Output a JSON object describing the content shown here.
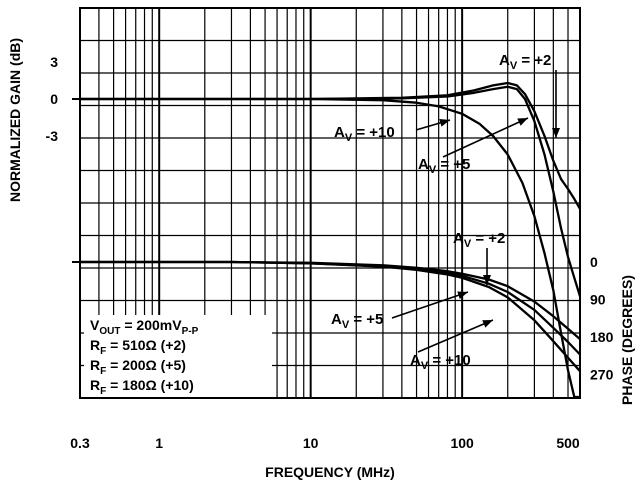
{
  "chart_data": {
    "type": "line",
    "xlabel": "FREQUENCY (MHz)",
    "ylabel_left": "NORMALIZED GAIN (dB)",
    "ylabel_right": "PHASE (DEGREES)",
    "x_scale": "log",
    "xlim": [
      0.3,
      600
    ],
    "x_ticks": [
      {
        "value": 0.3,
        "label": "0.3"
      },
      {
        "value": 1,
        "label": "1"
      },
      {
        "value": 10,
        "label": "10"
      },
      {
        "value": 100,
        "label": "100"
      },
      {
        "value": 500,
        "label": "500"
      }
    ],
    "gain_axis": {
      "ticks": [
        {
          "value": 3,
          "label": "3"
        },
        {
          "value": 0,
          "label": "0"
        },
        {
          "value": -3,
          "label": "-3"
        }
      ]
    },
    "phase_axis": {
      "ticks": [
        {
          "value": 0,
          "label": "0"
        },
        {
          "value": 90,
          "label": "90"
        },
        {
          "value": 180,
          "label": "180"
        },
        {
          "value": 270,
          "label": "270"
        }
      ]
    },
    "grid": true,
    "gain_series": [
      {
        "name": "+2",
        "x": [
          0.3,
          10,
          40,
          80,
          120,
          160,
          200,
          230,
          260,
          300,
          350,
          400,
          450,
          500,
          550,
          600
        ],
        "y": [
          0,
          0,
          0.1,
          0.3,
          0.7,
          1.1,
          1.3,
          1.1,
          0.4,
          -1.0,
          -3.0,
          -5.0,
          -6.5,
          -7.3,
          -8.1,
          -8.9
        ]
      },
      {
        "name": "+5",
        "x": [
          0.3,
          10,
          40,
          80,
          120,
          160,
          200,
          230,
          260,
          300,
          350,
          400,
          450,
          500,
          550,
          600
        ],
        "y": [
          0,
          0,
          0.05,
          0.2,
          0.5,
          0.8,
          1.0,
          0.8,
          0.0,
          -1.8,
          -4.5,
          -7.5,
          -10.5,
          -12.8,
          -14.5,
          -16.0
        ]
      },
      {
        "name": "+10",
        "x": [
          0.3,
          10,
          30,
          50,
          70,
          100,
          130,
          160,
          200,
          250,
          300,
          350,
          400,
          450,
          500,
          550,
          600
        ],
        "y": [
          0,
          0,
          -0.1,
          -0.3,
          -0.6,
          -1.2,
          -2.0,
          -3.0,
          -4.5,
          -6.8,
          -9.5,
          -12.5,
          -15.5,
          -19.0,
          -22.0,
          -24.5,
          -26.5
        ]
      }
    ],
    "phase_series": [
      {
        "name": "+2",
        "x": [
          0.3,
          3,
          10,
          30,
          50,
          80,
          100,
          150,
          200,
          300,
          400,
          500,
          600
        ],
        "y": [
          0,
          0,
          2,
          8,
          14,
          22,
          28,
          42,
          58,
          95,
          130,
          160,
          185
        ]
      },
      {
        "name": "+5",
        "x": [
          0.3,
          3,
          10,
          30,
          50,
          80,
          100,
          150,
          200,
          300,
          400,
          500,
          600
        ],
        "y": [
          0,
          0,
          3,
          10,
          17,
          26,
          33,
          52,
          72,
          115,
          158,
          192,
          222
        ]
      },
      {
        "name": "+10",
        "x": [
          0.3,
          3,
          10,
          30,
          50,
          80,
          100,
          150,
          200,
          300,
          400,
          500,
          600
        ],
        "y": [
          0,
          0,
          3,
          11,
          19,
          30,
          38,
          60,
          85,
          140,
          190,
          230,
          262
        ]
      }
    ],
    "annotations": {
      "av_prefix": "A",
      "av_sub": "V",
      "gain_av2": " = +2",
      "gain_av10": " = +10",
      "gain_av5": " = +5",
      "phase_av2": " = +2",
      "phase_av5": " = +5",
      "phase_av10": " = +10",
      "vout_main": "V",
      "vout_sub": "OUT",
      "vout_value": " = 200mV",
      "vout_unit_sub": "P-P",
      "rf_main": "R",
      "rf_sub": "F",
      "rf1": " = 510Ω (+2)",
      "rf2": " = 200Ω (+5)",
      "rf3": " = 180Ω (+10)"
    }
  }
}
